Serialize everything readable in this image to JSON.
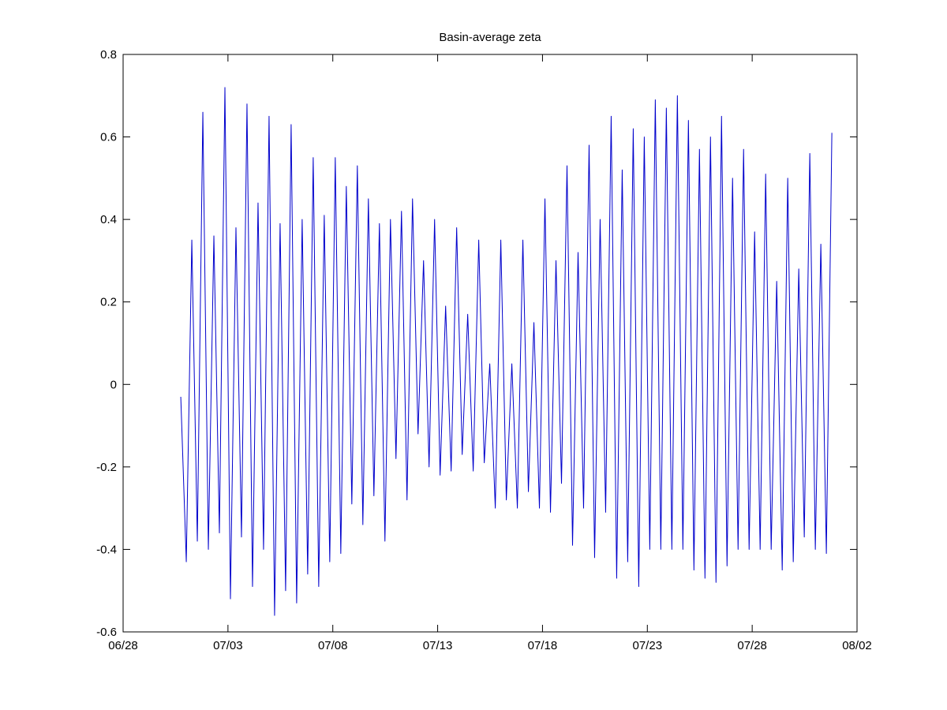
{
  "chart_data": {
    "type": "line",
    "title": "Basin-average zeta",
    "xlabel": "",
    "ylabel": "",
    "x_unit": "days since 06/28",
    "xlim": [
      0,
      35
    ],
    "ylim": [
      -0.6,
      0.8
    ],
    "grid": false,
    "xticks": [
      {
        "value": 0,
        "label": "06/28"
      },
      {
        "value": 5,
        "label": "07/03"
      },
      {
        "value": 10,
        "label": "07/08"
      },
      {
        "value": 15,
        "label": "07/13"
      },
      {
        "value": 20,
        "label": "07/18"
      },
      {
        "value": 25,
        "label": "07/23"
      },
      {
        "value": 30,
        "label": "07/28"
      },
      {
        "value": 35,
        "label": "08/02"
      }
    ],
    "yticks": [
      {
        "value": -0.6,
        "label": "-0.6"
      },
      {
        "value": -0.4,
        "label": "-0.4"
      },
      {
        "value": -0.2,
        "label": "-0.2"
      },
      {
        "value": 0,
        "label": "0"
      },
      {
        "value": 0.2,
        "label": "0.2"
      },
      {
        "value": 0.4,
        "label": "0.4"
      },
      {
        "value": 0.6,
        "label": "0.6"
      },
      {
        "value": 0.8,
        "label": "0.8"
      }
    ],
    "series": [
      {
        "name": "zeta",
        "color": "#0000cc",
        "sampling": "semidiurnal extrema (high/low water alternating)",
        "t_start": 2.75,
        "t_end": 33.8,
        "values": [
          -0.03,
          -0.43,
          0.35,
          -0.38,
          0.66,
          -0.4,
          0.36,
          -0.36,
          0.72,
          -0.52,
          0.38,
          -0.37,
          0.68,
          -0.49,
          0.44,
          -0.4,
          0.65,
          -0.56,
          0.39,
          -0.5,
          0.63,
          -0.53,
          0.4,
          -0.46,
          0.55,
          -0.49,
          0.41,
          -0.43,
          0.55,
          -0.41,
          0.48,
          -0.29,
          0.53,
          -0.34,
          0.45,
          -0.27,
          0.39,
          -0.38,
          0.4,
          -0.18,
          0.42,
          -0.28,
          0.45,
          -0.12,
          0.3,
          -0.2,
          0.4,
          -0.22,
          0.19,
          -0.21,
          0.38,
          -0.17,
          0.17,
          -0.21,
          0.35,
          -0.19,
          0.05,
          -0.3,
          0.35,
          -0.28,
          0.05,
          -0.3,
          0.35,
          -0.26,
          0.15,
          -0.3,
          0.45,
          -0.31,
          0.3,
          -0.24,
          0.53,
          -0.39,
          0.32,
          -0.3,
          0.58,
          -0.42,
          0.4,
          -0.31,
          0.65,
          -0.47,
          0.52,
          -0.43,
          0.62,
          -0.49,
          0.6,
          -0.4,
          0.69,
          -0.4,
          0.67,
          -0.4,
          0.7,
          -0.4,
          0.64,
          -0.45,
          0.57,
          -0.47,
          0.6,
          -0.48,
          0.65,
          -0.44,
          0.5,
          -0.4,
          0.57,
          -0.4,
          0.37,
          -0.4,
          0.51,
          -0.4,
          0.25,
          -0.45,
          0.5,
          -0.43,
          0.28,
          -0.37,
          0.56,
          -0.4,
          0.34,
          -0.41,
          0.61
        ]
      }
    ]
  }
}
